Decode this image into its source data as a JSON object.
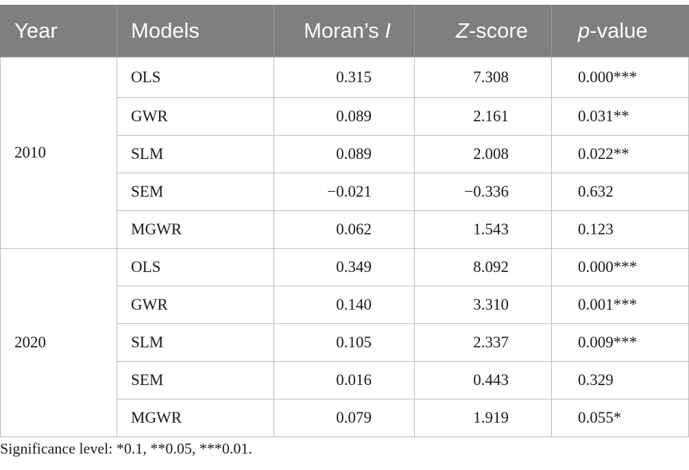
{
  "table": {
    "headers": {
      "year": "Year",
      "models": "Models",
      "moran_prefix": "Moran’s ",
      "moran_italic": "I",
      "z_italic": "Z",
      "z_suffix": "-score",
      "p_italic": "p",
      "p_suffix": "-value"
    },
    "groups": [
      {
        "year": "2010",
        "rows": [
          {
            "model": "OLS",
            "moran": "0.315",
            "z": "7.308",
            "p": "0.000***"
          },
          {
            "model": "GWR",
            "moran": "0.089",
            "z": "2.161",
            "p": "0.031**"
          },
          {
            "model": "SLM",
            "moran": "0.089",
            "z": "2.008",
            "p": "0.022**"
          },
          {
            "model": "SEM",
            "moran": "−0.021",
            "z": "−0.336",
            "p": "0.632"
          },
          {
            "model": "MGWR",
            "moran": "0.062",
            "z": "1.543",
            "p": "0.123"
          }
        ]
      },
      {
        "year": "2020",
        "rows": [
          {
            "model": "OLS",
            "moran": "0.349",
            "z": "8.092",
            "p": "0.000***"
          },
          {
            "model": "GWR",
            "moran": "0.140",
            "z": "3.310",
            "p": "0.001***"
          },
          {
            "model": "SLM",
            "moran": "0.105",
            "z": "2.337",
            "p": "0.009***"
          },
          {
            "model": "SEM",
            "moran": "0.016",
            "z": "0.443",
            "p": "0.329"
          },
          {
            "model": "MGWR",
            "moran": "0.079",
            "z": "1.919",
            "p": "0.055*"
          }
        ]
      }
    ]
  },
  "note": "Significance level: *0.1, **0.05, ***0.01.",
  "colors": {
    "header_bg": "#7f7f7f",
    "header_text": "#ffffff",
    "grid": "#b9b9b9"
  }
}
